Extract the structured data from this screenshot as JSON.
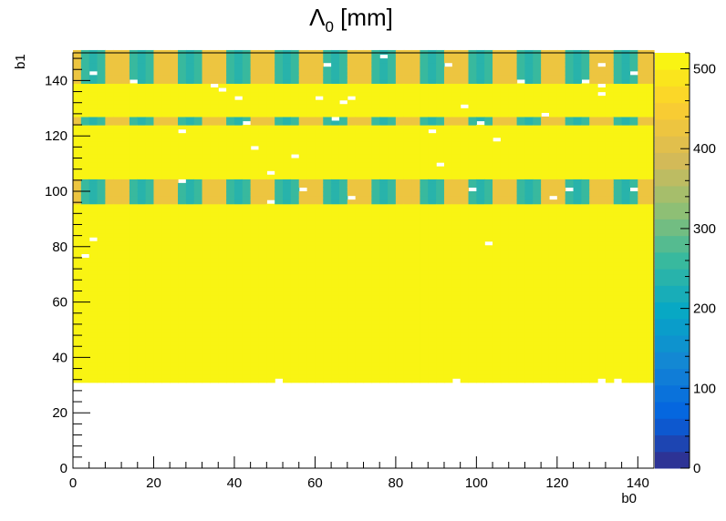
{
  "chart_data": {
    "type": "heatmap",
    "title": {
      "main": "Λ",
      "subscript": "0",
      "suffix": " [mm]"
    },
    "xlabel": "b0",
    "ylabel": "b1",
    "xlim": [
      0,
      144
    ],
    "ylim": [
      0,
      150
    ],
    "zlim": [
      0,
      520
    ],
    "x_ticks": [
      0,
      20,
      40,
      60,
      80,
      100,
      120,
      140
    ],
    "y_ticks": [
      0,
      20,
      40,
      60,
      80,
      100,
      120,
      140
    ],
    "colorbar_ticks": [
      0,
      100,
      200,
      300,
      400,
      500
    ],
    "grid": false,
    "colorbar_position": "right",
    "palette": [
      "#352a87",
      "#0363e1",
      "#1485d4",
      "#06a7c6",
      "#38b99e",
      "#92bf73",
      "#d9ba56",
      "#fcce2e",
      "#f9fb0e"
    ],
    "cell_size": {
      "x": 2,
      "y": 1.5
    },
    "background_value": 510,
    "empty_region": {
      "y_max": 31
    },
    "bands": [
      {
        "y_from": 95,
        "y_to": 104,
        "period_b0": 12,
        "low_value": 195,
        "high_value": 420,
        "phase": 0.4
      },
      {
        "y_from": 123,
        "y_to": 127,
        "period_b0": 12,
        "low_value": 195,
        "high_value": 420,
        "phase": 0.4
      },
      {
        "y_from": 139,
        "y_to": 150,
        "period_b0": 12,
        "low_value": 195,
        "high_value": 420,
        "phase": 0.4
      }
    ],
    "missing_cells": [
      [
        51,
        31
      ],
      [
        95,
        31
      ],
      [
        131,
        31
      ],
      [
        134,
        31
      ],
      [
        103,
        81
      ],
      [
        4,
        82
      ],
      [
        3,
        76
      ],
      [
        49,
        96
      ],
      [
        56,
        100
      ],
      [
        68,
        98
      ],
      [
        99,
        100
      ],
      [
        118,
        98
      ],
      [
        123,
        101
      ],
      [
        138,
        100
      ],
      [
        5,
        142
      ],
      [
        14,
        139
      ],
      [
        34,
        138
      ],
      [
        62,
        145
      ],
      [
        76,
        148
      ],
      [
        92,
        146
      ],
      [
        110,
        139
      ],
      [
        126,
        139
      ],
      [
        131,
        145
      ],
      [
        139,
        143
      ],
      [
        36,
        136
      ],
      [
        40,
        134
      ],
      [
        61,
        134
      ],
      [
        66,
        132
      ],
      [
        69,
        134
      ],
      [
        97,
        130
      ],
      [
        117,
        128
      ],
      [
        130,
        135
      ],
      [
        131,
        138
      ],
      [
        26,
        121
      ],
      [
        43,
        124
      ],
      [
        65,
        126
      ],
      [
        89,
        122
      ],
      [
        101,
        125
      ],
      [
        104,
        119
      ],
      [
        45,
        115
      ],
      [
        54,
        112
      ],
      [
        49,
        106
      ],
      [
        90,
        109
      ],
      [
        27,
        103
      ]
    ]
  }
}
